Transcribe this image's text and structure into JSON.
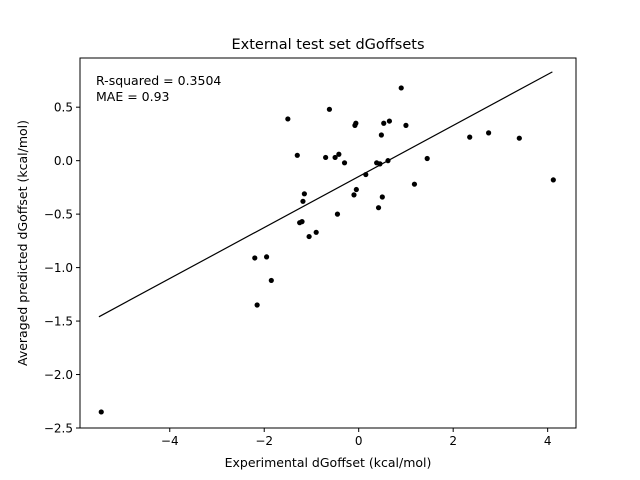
{
  "chart_data": {
    "type": "scatter",
    "title": "External test set dGoffsets",
    "xlabel": "Experimental dGoffset (kcal/mol)",
    "ylabel": "Averaged predicted dGoffset (kcal/mol)",
    "xlim": [
      -5.9,
      4.6
    ],
    "ylim": [
      -2.5,
      0.96
    ],
    "xticks": [
      -4,
      -2,
      0,
      2,
      4
    ],
    "xtick_labels": [
      "−4",
      "−2",
      "0",
      "2",
      "4"
    ],
    "yticks": [
      -2.5,
      -2.0,
      -1.5,
      -1.0,
      -0.5,
      0.0,
      0.5
    ],
    "ytick_labels": [
      "−2.5",
      "−2.0",
      "−1.5",
      "−1.0",
      "−0.5",
      "0.0",
      "0.5"
    ],
    "grid": false,
    "annotations": [
      "R-squared = 0.3504",
      "MAE = 0.93"
    ],
    "marker_color": "#000000",
    "line_color": "#000000",
    "fit_line": {
      "x": [
        -5.5,
        4.1
      ],
      "y": [
        -1.46,
        0.83
      ]
    },
    "points": [
      {
        "x": -5.45,
        "y": -2.35
      },
      {
        "x": -2.2,
        "y": -0.91
      },
      {
        "x": -2.15,
        "y": -1.35
      },
      {
        "x": -1.95,
        "y": -0.9
      },
      {
        "x": -1.85,
        "y": -1.12
      },
      {
        "x": -1.5,
        "y": 0.39
      },
      {
        "x": -1.3,
        "y": 0.05
      },
      {
        "x": -1.25,
        "y": -0.58
      },
      {
        "x": -1.2,
        "y": -0.57
      },
      {
        "x": -1.18,
        "y": -0.38
      },
      {
        "x": -1.15,
        "y": -0.31
      },
      {
        "x": -1.05,
        "y": -0.71
      },
      {
        "x": -0.9,
        "y": -0.67
      },
      {
        "x": -0.7,
        "y": 0.03
      },
      {
        "x": -0.62,
        "y": 0.48
      },
      {
        "x": -0.5,
        "y": 0.03
      },
      {
        "x": -0.45,
        "y": -0.5
      },
      {
        "x": -0.42,
        "y": 0.06
      },
      {
        "x": -0.3,
        "y": -0.02
      },
      {
        "x": -0.1,
        "y": -0.32
      },
      {
        "x": -0.08,
        "y": 0.33
      },
      {
        "x": -0.06,
        "y": 0.35
      },
      {
        "x": -0.05,
        "y": -0.27
      },
      {
        "x": 0.15,
        "y": -0.13
      },
      {
        "x": 0.38,
        "y": -0.02
      },
      {
        "x": 0.42,
        "y": -0.44
      },
      {
        "x": 0.45,
        "y": -0.03
      },
      {
        "x": 0.48,
        "y": 0.24
      },
      {
        "x": 0.5,
        "y": -0.34
      },
      {
        "x": 0.53,
        "y": 0.35
      },
      {
        "x": 0.62,
        "y": 0.0
      },
      {
        "x": 0.65,
        "y": 0.37
      },
      {
        "x": 0.9,
        "y": 0.68
      },
      {
        "x": 1.0,
        "y": 0.33
      },
      {
        "x": 1.18,
        "y": -0.22
      },
      {
        "x": 1.45,
        "y": 0.02
      },
      {
        "x": 2.35,
        "y": 0.22
      },
      {
        "x": 2.75,
        "y": 0.26
      },
      {
        "x": 3.4,
        "y": 0.21
      },
      {
        "x": 4.12,
        "y": -0.18
      }
    ]
  }
}
